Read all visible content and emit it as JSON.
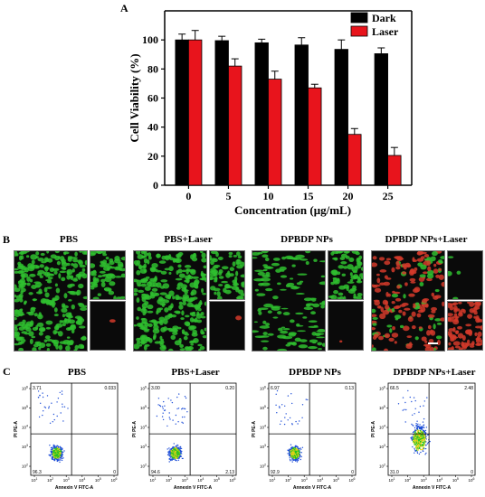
{
  "panels": {
    "a_letter": "A",
    "b_letter": "B",
    "c_letter": "C"
  },
  "chart_data": [
    {
      "type": "bar",
      "categories": [
        "0",
        "5",
        "10",
        "15",
        "20",
        "25"
      ],
      "series": [
        {
          "name": "Dark",
          "values": [
            100,
            99.5,
            98,
            96.5,
            93.5,
            90.5
          ],
          "errors": [
            4,
            3,
            2.5,
            5,
            6.5,
            4
          ],
          "color": "#000000"
        },
        {
          "name": "Laser",
          "values": [
            100,
            82,
            73,
            67,
            35,
            20.5
          ],
          "errors": [
            6.5,
            5,
            5.5,
            2.5,
            4,
            5.5
          ],
          "color": "#e8141c"
        }
      ],
      "xlabel": "Concentration (μg/mL)",
      "ylabel": "Cell Viability (%)",
      "ylim": [
        0,
        120
      ],
      "yticks": [
        0,
        20,
        40,
        60,
        80,
        100
      ],
      "legend_position": "top-right",
      "grid": false
    },
    {
      "type": "scatter",
      "title": "PBS",
      "xlabel": "Annexin V FITC-A",
      "ylabel": "PI PE-A",
      "xticks": [
        "10",
        "10",
        "10",
        "10",
        "10",
        "10"
      ],
      "xtick_exps": [
        "1",
        "2",
        "3",
        "4",
        "5",
        "6"
      ],
      "yticks": [
        "10",
        "10",
        "10",
        "10",
        "10"
      ],
      "ytick_exps": [
        "2",
        "3",
        "4",
        "5",
        "6"
      ],
      "quadrants": {
        "upper_left": "3.71",
        "upper_right": "0.033",
        "lower_left": "96.3",
        "lower_right": "0"
      }
    },
    {
      "type": "scatter",
      "title": "PBS+Laser",
      "xlabel": "Annexin V FITC-A",
      "ylabel": "PI PE-A",
      "xticks": [
        "10",
        "10",
        "10",
        "10",
        "10",
        "10"
      ],
      "xtick_exps": [
        "1",
        "2",
        "3",
        "4",
        "5",
        "6"
      ],
      "yticks": [
        "10",
        "10",
        "10",
        "10",
        "10"
      ],
      "ytick_exps": [
        "2",
        "3",
        "4",
        "5",
        "6"
      ],
      "quadrants": {
        "upper_left": "3.00",
        "upper_right": "0.20",
        "lower_left": "94.6",
        "lower_right": "2.13"
      }
    },
    {
      "type": "scatter",
      "title": "DPBDP NPs",
      "xlabel": "Annexin V FITC-A",
      "ylabel": "PI PE-A",
      "xticks": [
        "10",
        "10",
        "10",
        "10",
        "10",
        "10"
      ],
      "xtick_exps": [
        "1",
        "2",
        "3",
        "4",
        "5",
        "6"
      ],
      "yticks": [
        "10",
        "10",
        "10",
        "10",
        "10"
      ],
      "ytick_exps": [
        "2",
        "3",
        "4",
        "5",
        "6"
      ],
      "quadrants": {
        "upper_left": "6.97",
        "upper_right": "0.13",
        "lower_left": "92.9",
        "lower_right": "0"
      }
    },
    {
      "type": "scatter",
      "title": "DPBDP NPs+Laser",
      "xlabel": "Annexin V FITC-A",
      "ylabel": "PI PE-A",
      "xticks": [
        "10",
        "10",
        "10",
        "10",
        "10",
        "10"
      ],
      "xtick_exps": [
        "1",
        "2",
        "3",
        "4",
        "5",
        "6"
      ],
      "yticks": [
        "10",
        "10",
        "10",
        "10",
        "10"
      ],
      "ytick_exps": [
        "2",
        "3",
        "4",
        "5",
        "6"
      ],
      "quadrants": {
        "upper_left": "66.5",
        "upper_right": "2.48",
        "lower_left": "31.0",
        "lower_right": "0"
      }
    }
  ],
  "micrographs": [
    {
      "title": "PBS"
    },
    {
      "title": "PBS+Laser"
    },
    {
      "title": "DPBDP NPs"
    },
    {
      "title": "DPBDP NPs+Laser"
    }
  ],
  "colors": {
    "live_green": "#2fbf2f",
    "dead_red": "#d23a2a",
    "dark_bg": "#0a0a0a",
    "flow_scatter": "#1f4fd8"
  }
}
